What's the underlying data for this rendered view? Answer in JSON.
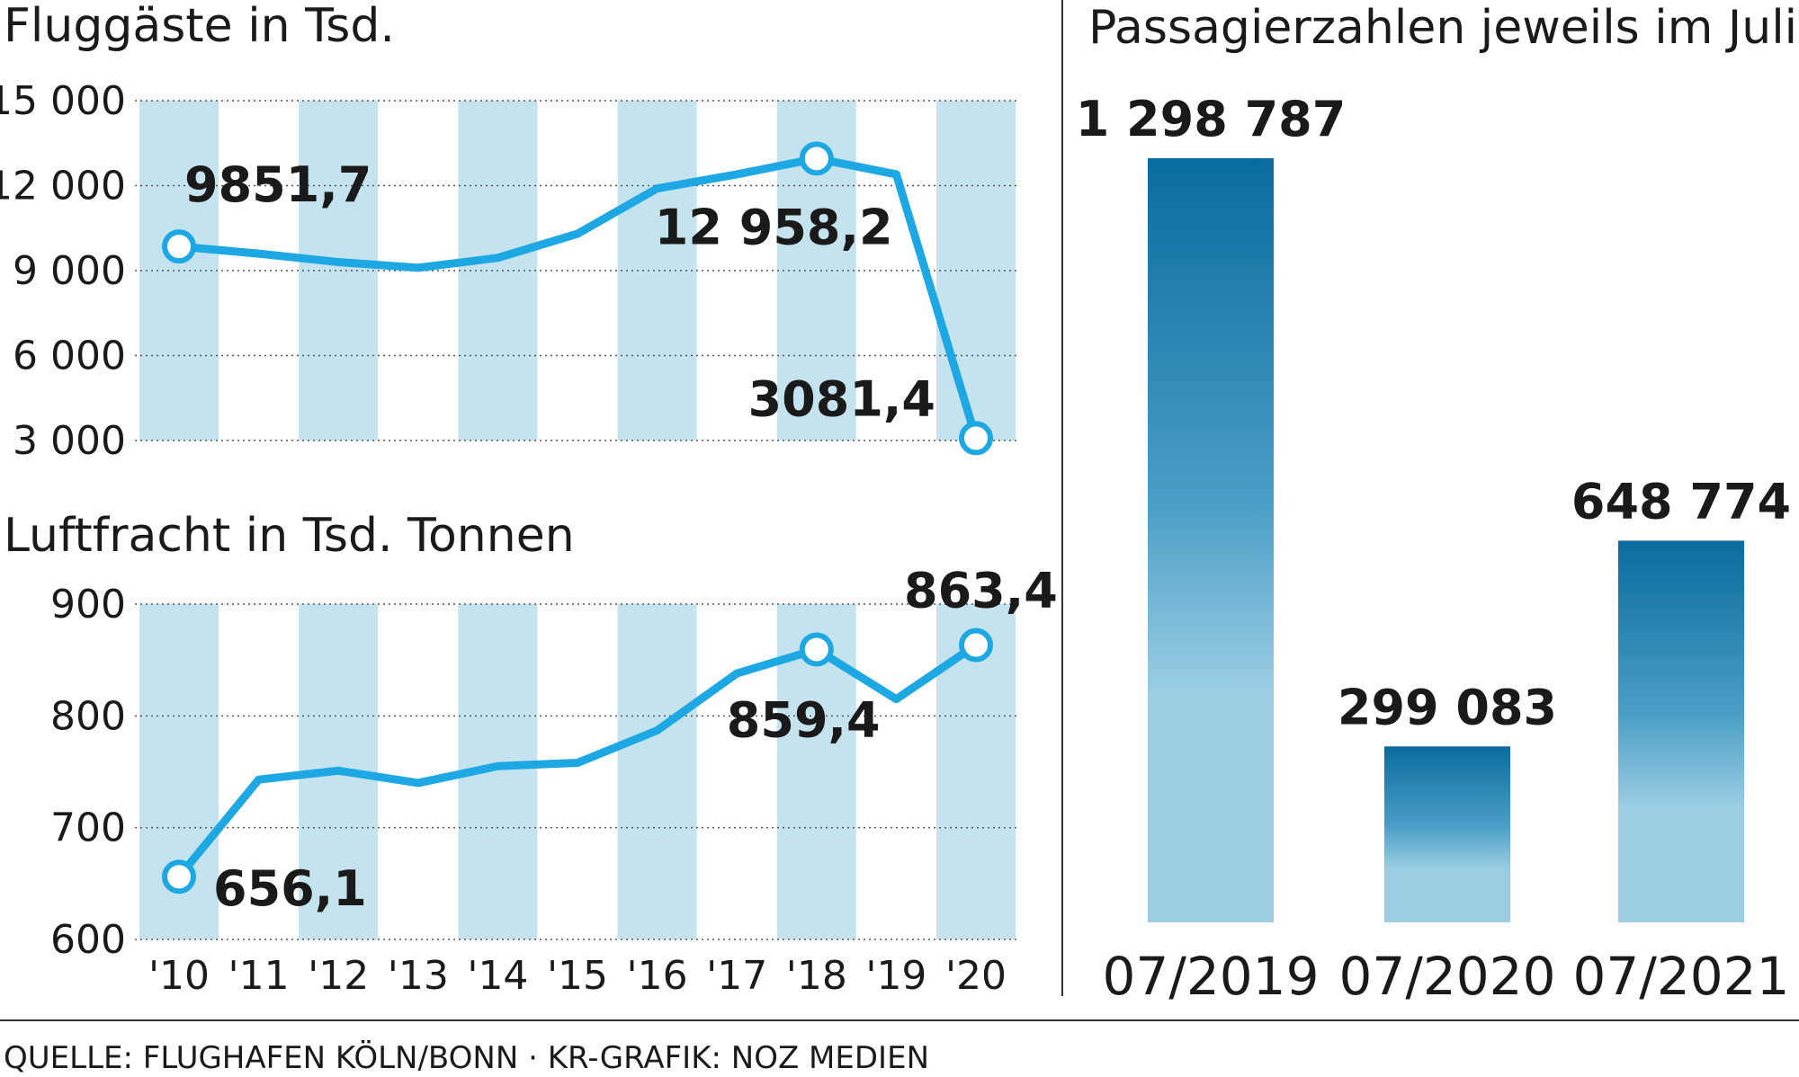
{
  "chart_data": [
    {
      "type": "line",
      "title": "Fluggäste in Tsd.",
      "x": [
        "'10",
        "'11",
        "'12",
        "'13",
        "'14",
        "'15",
        "'16",
        "'17",
        "'18",
        "'19",
        "'20"
      ],
      "y_ticks": [
        "15 000",
        "12 000",
        "9 000",
        "6 000",
        "3 000"
      ],
      "ylim": [
        3000,
        15000
      ],
      "series": [
        {
          "values": [
            9851.7,
            9600,
            9300,
            9100,
            9450,
            10300,
            11900,
            12400,
            12958.2,
            12400,
            3081.4
          ]
        }
      ],
      "annotations": [
        {
          "index": 0,
          "text": "9851,7"
        },
        {
          "index": 8,
          "text": "12 958,2"
        },
        {
          "index": 10,
          "text": "3081,4"
        }
      ],
      "line_color": "#1da8e3"
    },
    {
      "type": "line",
      "title": "Luftfracht in Tsd. Tonnen",
      "x": [
        "'10",
        "'11",
        "'12",
        "'13",
        "'14",
        "'15",
        "'16",
        "'17",
        "'18",
        "'19",
        "'20"
      ],
      "x_tick_labels": [
        "'10",
        "'11",
        "'12",
        "'13",
        "'14",
        "'15",
        "'16",
        "'17",
        "'18",
        "'19",
        "'20"
      ],
      "y_ticks": [
        "900",
        "800",
        "700",
        "600"
      ],
      "ylim": [
        600,
        900
      ],
      "series": [
        {
          "values": [
            656.1,
            743,
            751,
            740,
            755,
            758,
            787,
            838,
            859.4,
            815,
            863.4
          ]
        }
      ],
      "annotations": [
        {
          "index": 0,
          "text": "656,1"
        },
        {
          "index": 8,
          "text": "859,4"
        },
        {
          "index": 10,
          "text": "863,4"
        }
      ],
      "line_color": "#1da8e3"
    },
    {
      "type": "bar",
      "title": "Passagierzahlen jeweils im Juli",
      "categories": [
        "07/2019",
        "07/2020",
        "07/2021"
      ],
      "values": [
        1298787,
        299083,
        648774
      ],
      "value_labels": [
        "1 298 787",
        "299 083",
        "648 774"
      ],
      "colors": {
        "top": "#0a6c9e",
        "bottom": "#9ccde3"
      }
    }
  ],
  "source_text": "QUELLE: FLUGHAFEN KÖLN/BONN  · KR-GRAFIK: NOZ MEDIEN",
  "colors": {
    "band": "#c5e3ef",
    "line": "#1da8e3",
    "grid": "#555555"
  }
}
